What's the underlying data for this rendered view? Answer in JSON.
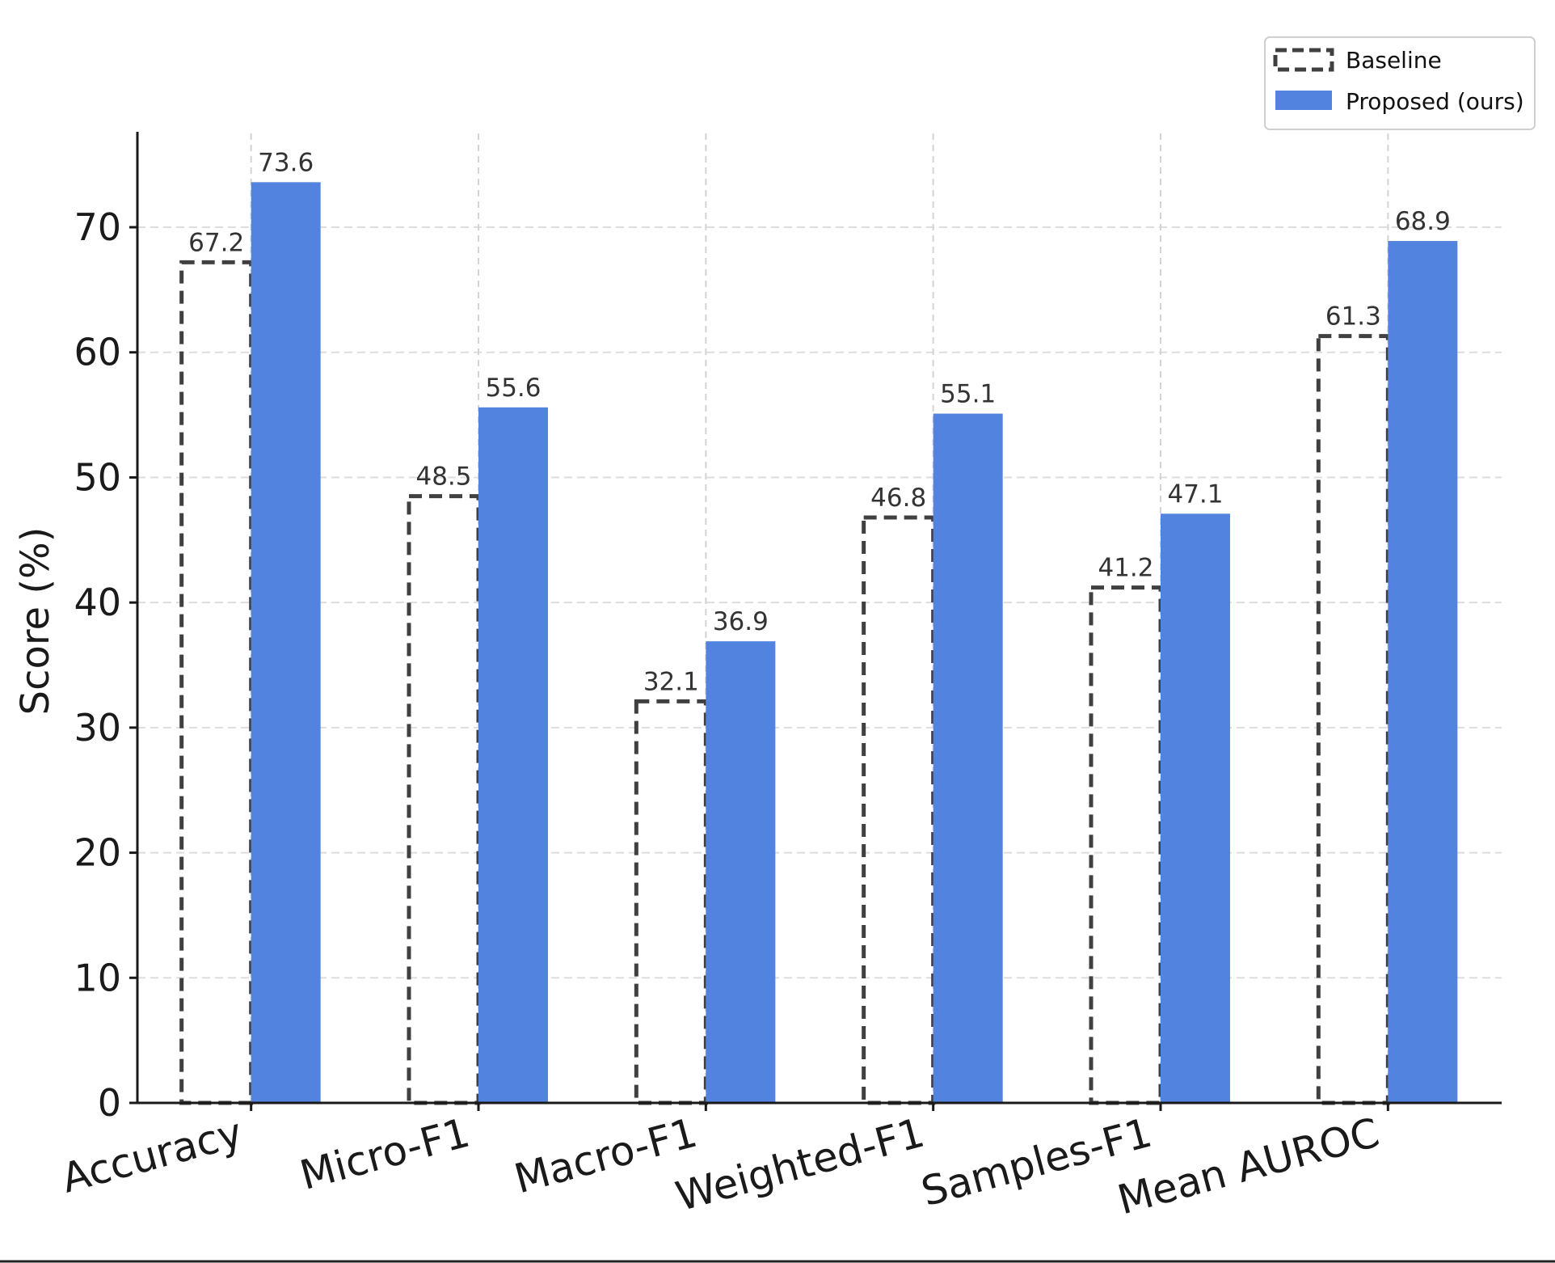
{
  "chart_data": {
    "type": "bar",
    "title": "",
    "xlabel": "",
    "ylabel": "Score (%)",
    "ylim": [
      0,
      77.5
    ],
    "yticks": [
      0,
      10,
      20,
      30,
      40,
      50,
      60,
      70
    ],
    "grid": true,
    "legend_position": "top-right",
    "categories": [
      "Accuracy",
      "Micro-F1",
      "Macro-F1",
      "Weighted-F1",
      "Samples-F1",
      "Mean AUROC"
    ],
    "series": [
      {
        "name": "Baseline",
        "style": "dashed-outline",
        "color": "#404040",
        "values": [
          67.2,
          48.5,
          32.1,
          46.8,
          41.2,
          61.3
        ]
      },
      {
        "name": "Proposed (ours)",
        "style": "filled",
        "color": "#5283df",
        "values": [
          73.6,
          55.6,
          36.9,
          55.1,
          47.1,
          68.9
        ]
      }
    ]
  }
}
